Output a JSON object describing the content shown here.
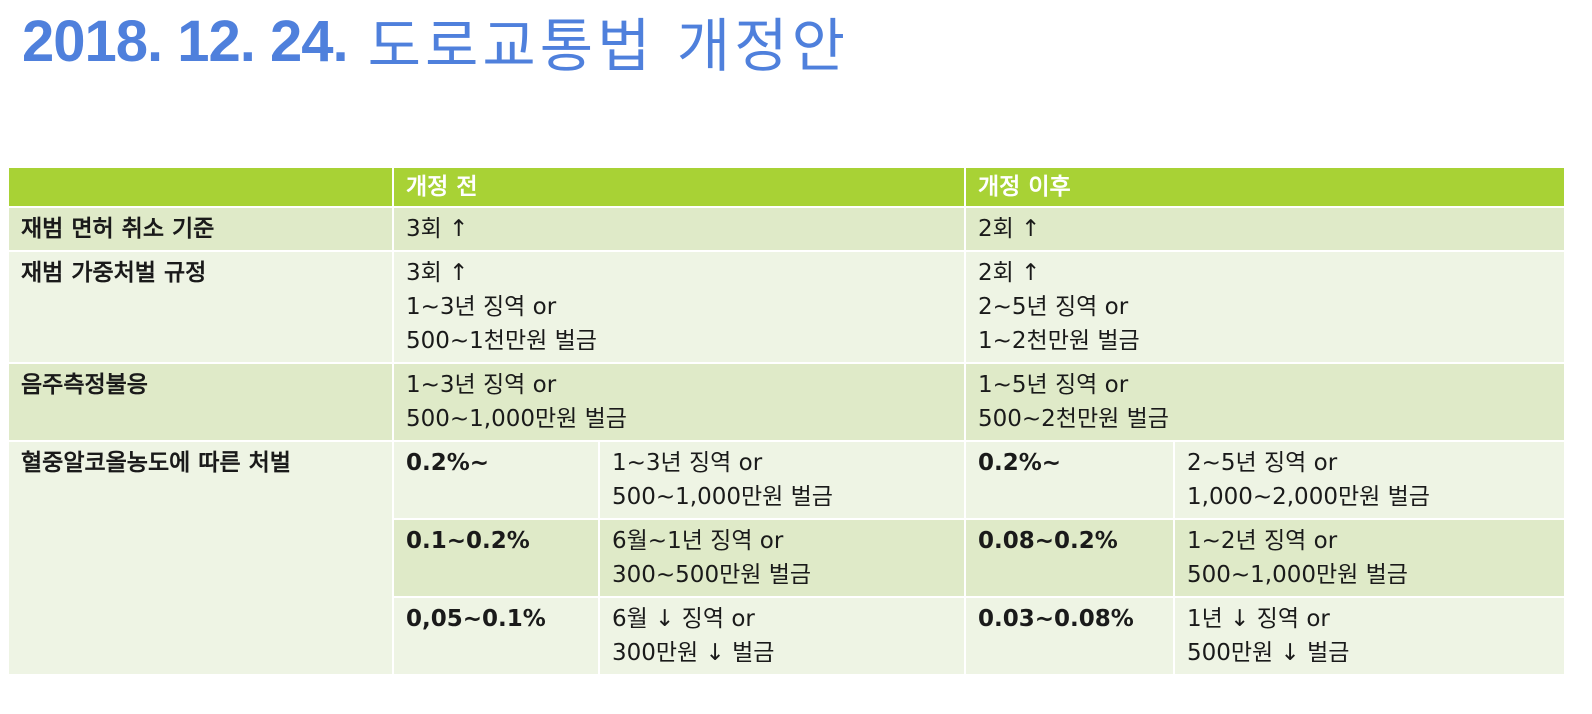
{
  "title": {
    "date": "2018. 12. 24.",
    "text": "도로교통법 개정안"
  },
  "table": {
    "headers": {
      "blank": "",
      "before": "개정 전",
      "after": "개정 이후"
    },
    "rows": [
      {
        "label": "재범 면허 취소 기준",
        "before": [
          "3회 ↑"
        ],
        "after": [
          "2회 ↑"
        ]
      },
      {
        "label": "재범 가중처벌 규정",
        "before": [
          "3회 ↑",
          "1~3년 징역 or",
          "500~1천만원 벌금"
        ],
        "after": [
          "2회 ↑",
          "2~5년 징역 or",
          "1~2천만원 벌금"
        ]
      },
      {
        "label": "음주측정불응",
        "before": [
          "1~3년 징역 or",
          "500~1,000만원 벌금"
        ],
        "after": [
          "1~5년 징역 or",
          "500~2천만원 벌금"
        ]
      }
    ],
    "bac": {
      "label": "혈중알코올농도에 따른 처벌",
      "tiers": [
        {
          "before_level": "0.2%~",
          "before_penalty": [
            "1~3년 징역 or",
            "500~1,000만원 벌금"
          ],
          "after_level": "0.2%~",
          "after_penalty": [
            "2~5년 징역 or",
            "1,000~2,000만원 벌금"
          ]
        },
        {
          "before_level": "0.1~0.2%",
          "before_penalty": [
            "6월~1년 징역 or",
            "300~500만원 벌금"
          ],
          "after_level": "0.08~0.2%",
          "after_penalty": [
            "1~2년 징역 or",
            "500~1,000만원 벌금"
          ]
        },
        {
          "before_level": "0,05~0.1%",
          "before_penalty": [
            "6월 ↓ 징역 or",
            "300만원 ↓ 벌금"
          ],
          "after_level": "0.03~0.08%",
          "after_penalty": [
            "1년 ↓ 징역 or",
            "500만원 ↓ 벌금"
          ]
        }
      ]
    }
  }
}
